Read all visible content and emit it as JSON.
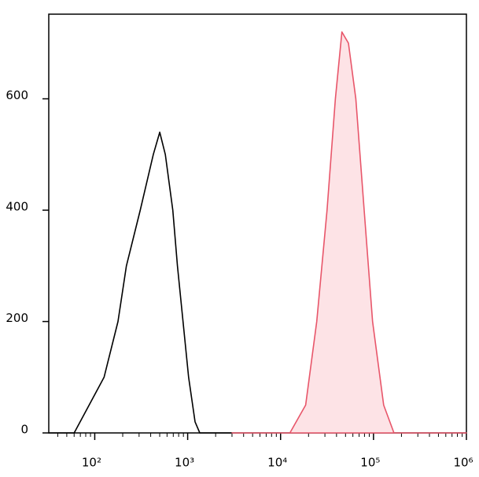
{
  "chart_data": {
    "type": "line",
    "log_x": true,
    "series": [
      {
        "name": null,
        "color": "#000000",
        "fill": null,
        "x": [
          32,
          60,
          126,
          178,
          219,
          309,
          427,
          501,
          575,
          692,
          776,
          891,
          1023,
          1202,
          1349,
          3000
        ],
        "values": [
          0,
          0,
          100,
          200,
          300,
          400,
          500,
          540,
          500,
          400,
          300,
          200,
          100,
          20,
          0,
          0
        ]
      },
      {
        "name": null,
        "color": "#e8566a",
        "fill": "#fde3e6",
        "x": [
          3000,
          12600,
          18600,
          24500,
          31600,
          38900,
          45700,
          53700,
          64600,
          79400,
          97700,
          128800,
          166000,
          1000000
        ],
        "values": [
          0,
          0,
          50,
          200,
          400,
          600,
          720,
          700,
          600,
          400,
          200,
          50,
          0,
          0
        ]
      }
    ],
    "xlim": [
      32,
      1000000
    ],
    "xticks": [
      {
        "value": 100,
        "label": "10²"
      },
      {
        "value": 1000,
        "label": "10³"
      },
      {
        "value": 10000,
        "label": "10⁴"
      },
      {
        "value": 100000,
        "label": "10⁵"
      },
      {
        "value": 1000000,
        "label": "10⁶"
      }
    ],
    "ylim": [
      0,
      752
    ],
    "yticks": [
      0,
      200,
      400,
      600
    ]
  }
}
